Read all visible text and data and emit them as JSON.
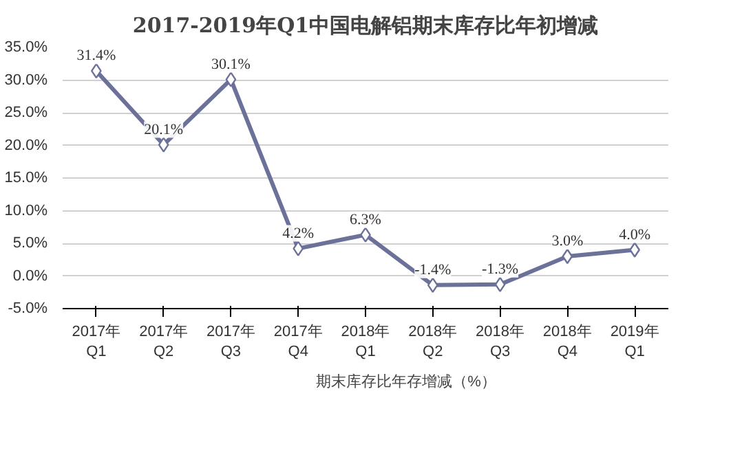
{
  "chart_data": {
    "type": "line",
    "title": "2017-2019年Q1中国电解铝期末库存比年初增减",
    "categories": [
      "2017年\nQ1",
      "2017年\nQ2",
      "2017年\nQ3",
      "2017年\nQ4",
      "2018年\nQ1",
      "2018年\nQ2",
      "2018年\nQ3",
      "2018年\nQ4",
      "2019年\nQ1"
    ],
    "series": [
      {
        "name": "期末库存比年存增减（%）",
        "color": "#6b7199",
        "values": [
          31.4,
          20.1,
          30.1,
          4.2,
          6.3,
          -1.4,
          -1.3,
          3.0,
          4.0
        ],
        "value_labels": [
          "31.4%",
          "20.1%",
          "30.1%",
          "4.2%",
          "6.3%",
          "-1.4%",
          "-1.3%",
          "3.0%",
          "4.0%"
        ]
      }
    ],
    "ylim": [
      -5,
      35
    ],
    "yticks": [
      {
        "value": -5,
        "label": "-5.0%"
      },
      {
        "value": 0,
        "label": "0.0%"
      },
      {
        "value": 5,
        "label": "5.0%"
      },
      {
        "value": 10,
        "label": "10.0%"
      },
      {
        "value": 15,
        "label": "15.0%"
      },
      {
        "value": 20,
        "label": "20.0%"
      },
      {
        "value": 25,
        "label": "25.0%"
      },
      {
        "value": 30,
        "label": "30.0%"
      },
      {
        "value": 35,
        "label": "35.0%"
      }
    ],
    "grid": "y",
    "legend": "bottom",
    "marker": "diamond",
    "line_style": "solid"
  }
}
